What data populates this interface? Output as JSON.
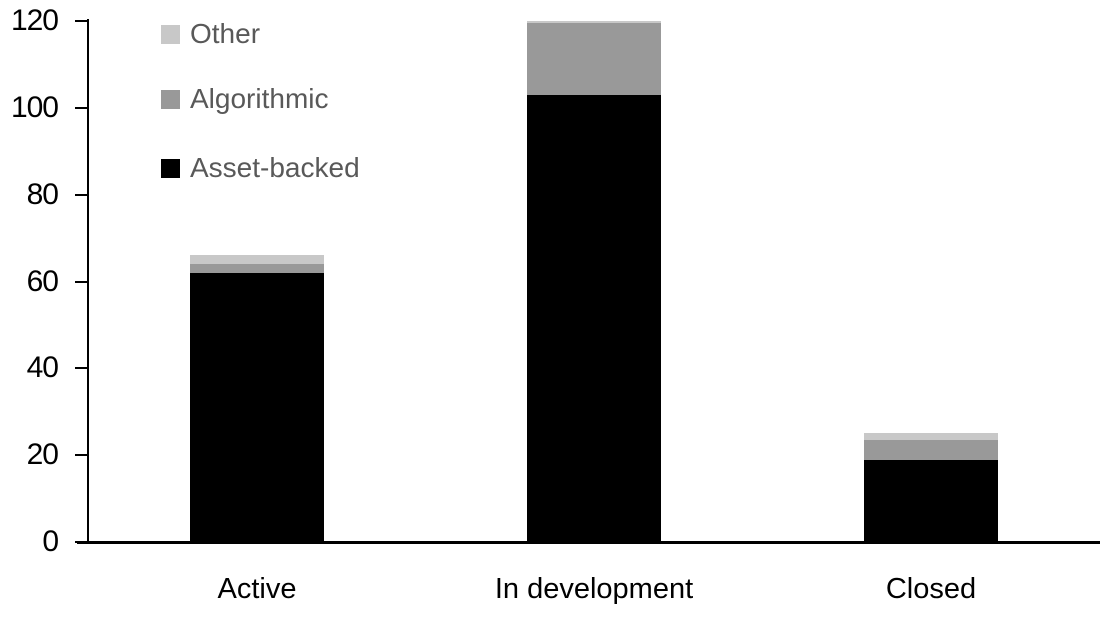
{
  "chart_data": {
    "type": "bar",
    "stacked": true,
    "title": "",
    "xlabel": "",
    "ylabel": "",
    "categories": [
      "Active",
      "In development",
      "Closed"
    ],
    "series": [
      {
        "name": "Asset-backed",
        "color": "#000000",
        "values": [
          62,
          103,
          19
        ]
      },
      {
        "name": "Algorithmic",
        "color": "#999999",
        "values": [
          2,
          16.5,
          4.5
        ]
      },
      {
        "name": "Other",
        "color": "#c8c8c8",
        "values": [
          2,
          0.5,
          1.5
        ]
      }
    ],
    "stack_totals": [
      66,
      120,
      25
    ],
    "ylim": [
      0,
      120
    ],
    "yticks": [
      0,
      20,
      40,
      60,
      80,
      100,
      120
    ],
    "grid": false,
    "legend_position": "upper-left-inside",
    "legend_order_top_to_bottom": [
      "Other",
      "Algorithmic",
      "Asset-backed"
    ],
    "colors": {
      "axis": "#000000",
      "tick_label": "#000000",
      "category_label": "#000000",
      "legend_text": "#595959",
      "background": "#ffffff"
    }
  }
}
